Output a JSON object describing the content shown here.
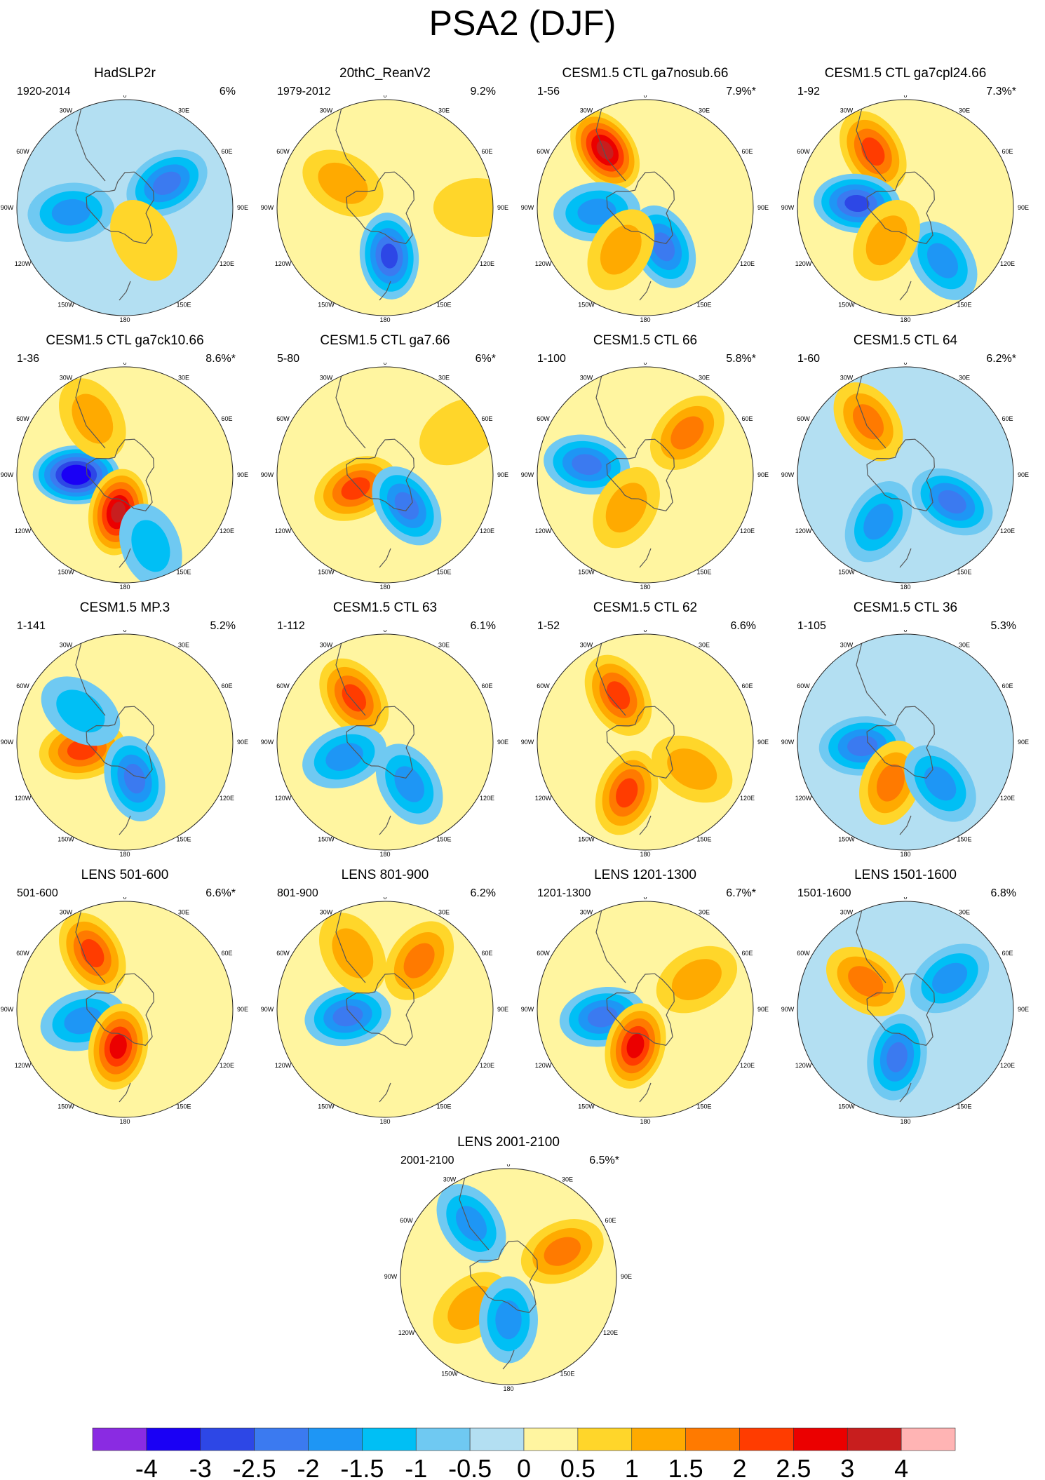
{
  "title": "PSA2 (DJF)",
  "longitude_labels": [
    "0",
    "30E",
    "60E",
    "90E",
    "120E",
    "150E",
    "180",
    "150W",
    "120W",
    "90W",
    "60W",
    "30W"
  ],
  "colorbar": {
    "labels": [
      "-4",
      "-3",
      "-2.5",
      "-2",
      "-1.5",
      "-1",
      "-0.5",
      "0",
      "0.5",
      "1",
      "1.5",
      "2",
      "2.5",
      "3",
      "4"
    ],
    "colors": [
      "#8a2be2",
      "#1a00f5",
      "#2d47e6",
      "#3b7af0",
      "#1e96f5",
      "#00bff5",
      "#6fc9f2",
      "#b3dff2",
      "#fff5a0",
      "#ffd62a",
      "#ffaa00",
      "#ff7a00",
      "#ff3c00",
      "#eb0000",
      "#c81e1e",
      "#ffb4b4"
    ]
  },
  "chart_data": {
    "type": "polar-contour-maps",
    "projection": "south-polar stereographic",
    "panels": [
      {
        "title": "HadSLP2r",
        "years": "1920-2014",
        "pct": "6%",
        "blobs": [
          {
            "lon": 60,
            "r": 0.45,
            "v": -2.0
          },
          {
            "lon": -95,
            "r": 0.5,
            "v": -1.5
          },
          {
            "lon": 150,
            "r": 0.35,
            "v": 0.5
          }
        ]
      },
      {
        "title": "20thC_ReanV2",
        "years": "1979-2012",
        "pct": "9.2%",
        "blobs": [
          {
            "lon": 175,
            "r": 0.45,
            "v": -2.5
          },
          {
            "lon": -60,
            "r": 0.45,
            "v": 1.0
          },
          {
            "lon": 90,
            "r": 0.85,
            "v": 0.5
          }
        ]
      },
      {
        "title": "CESM1.5 CTL ga7nosub.66",
        "years": "1-56",
        "pct": "7.9%*",
        "blobs": [
          {
            "lon": -35,
            "r": 0.65,
            "v": 3.0
          },
          {
            "lon": -95,
            "r": 0.45,
            "v": -1.5
          },
          {
            "lon": 155,
            "r": 0.4,
            "v": -2.0
          },
          {
            "lon": -150,
            "r": 0.45,
            "v": 1.0
          }
        ]
      },
      {
        "title": "CESM1.5 CTL ga7cpl24.66",
        "years": "1-92",
        "pct": "7.3%*",
        "blobs": [
          {
            "lon": -30,
            "r": 0.6,
            "v": 2.0
          },
          {
            "lon": -85,
            "r": 0.45,
            "v": -2.5
          },
          {
            "lon": 145,
            "r": 0.6,
            "v": -1.5
          },
          {
            "lon": -150,
            "r": 0.35,
            "v": 1.0
          }
        ]
      },
      {
        "title": "CESM1.5 CTL ga7ck10.66",
        "years": "1-36",
        "pct": "8.6%*",
        "blobs": [
          {
            "lon": -90,
            "r": 0.45,
            "v": -3.5
          },
          {
            "lon": -170,
            "r": 0.35,
            "v": 3.0
          },
          {
            "lon": -30,
            "r": 0.6,
            "v": 1.0
          },
          {
            "lon": 160,
            "r": 0.7,
            "v": -1.0
          }
        ]
      },
      {
        "title": "CESM1.5 CTL ga7.66",
        "years": "5-80",
        "pct": "6%*",
        "blobs": [
          {
            "lon": -115,
            "r": 0.3,
            "v": 2.0
          },
          {
            "lon": 145,
            "r": 0.35,
            "v": -2.0
          },
          {
            "lon": 60,
            "r": 0.8,
            "v": 0.5
          }
        ]
      },
      {
        "title": "CESM1.5 CTL 66",
        "years": "1-100",
        "pct": "5.8%*",
        "blobs": [
          {
            "lon": -80,
            "r": 0.55,
            "v": -2.0
          },
          {
            "lon": 45,
            "r": 0.55,
            "v": 1.5
          },
          {
            "lon": -150,
            "r": 0.35,
            "v": 1.0
          }
        ]
      },
      {
        "title": "CESM1.5 CTL 64",
        "years": "1-60",
        "pct": "6.2%*",
        "blobs": [
          {
            "lon": -35,
            "r": 0.6,
            "v": 1.5
          },
          {
            "lon": 120,
            "r": 0.5,
            "v": -2.0
          },
          {
            "lon": -150,
            "r": 0.5,
            "v": -1.5
          }
        ]
      },
      {
        "title": "CESM1.5 MP.3",
        "years": "1-141",
        "pct": "5.2%",
        "blobs": [
          {
            "lon": -100,
            "r": 0.4,
            "v": 2.0
          },
          {
            "lon": 165,
            "r": 0.35,
            "v": -2.0
          },
          {
            "lon": -55,
            "r": 0.5,
            "v": -1.0
          }
        ]
      },
      {
        "title": "CESM1.5 CTL 63",
        "years": "1-112",
        "pct": "6.1%",
        "blobs": [
          {
            "lon": -35,
            "r": 0.5,
            "v": 2.0
          },
          {
            "lon": 150,
            "r": 0.45,
            "v": -1.5
          },
          {
            "lon": -110,
            "r": 0.4,
            "v": -1.5
          }
        ]
      },
      {
        "title": "CESM1.5 CTL 62",
        "years": "1-52",
        "pct": "6.6%",
        "blobs": [
          {
            "lon": -30,
            "r": 0.5,
            "v": 2.0
          },
          {
            "lon": -160,
            "r": 0.5,
            "v": 2.0
          },
          {
            "lon": 120,
            "r": 0.5,
            "v": 1.0
          }
        ]
      },
      {
        "title": "CESM1.5 CTL 36",
        "years": "1-105",
        "pct": "5.3%",
        "blobs": [
          {
            "lon": -95,
            "r": 0.4,
            "v": -2.0
          },
          {
            "lon": -160,
            "r": 0.4,
            "v": 1.5
          },
          {
            "lon": 140,
            "r": 0.5,
            "v": -1.5
          }
        ]
      },
      {
        "title": "LENS 501-600",
        "years": "501-600",
        "pct": "6.6%*",
        "blobs": [
          {
            "lon": -30,
            "r": 0.6,
            "v": 2.0
          },
          {
            "lon": -105,
            "r": 0.4,
            "v": -1.5
          },
          {
            "lon": -170,
            "r": 0.35,
            "v": 2.5
          }
        ]
      },
      {
        "title": "LENS 801-900",
        "years": "801-900",
        "pct": "6.2%",
        "blobs": [
          {
            "lon": -100,
            "r": 0.35,
            "v": -2.0
          },
          {
            "lon": 35,
            "r": 0.55,
            "v": 1.5
          },
          {
            "lon": -30,
            "r": 0.6,
            "v": 1.0
          }
        ]
      },
      {
        "title": "LENS 1201-1300",
        "years": "1201-1300",
        "pct": "6.7%*",
        "blobs": [
          {
            "lon": -100,
            "r": 0.4,
            "v": -2.0
          },
          {
            "lon": -165,
            "r": 0.35,
            "v": 2.5
          },
          {
            "lon": 60,
            "r": 0.55,
            "v": 1.0
          }
        ]
      },
      {
        "title": "LENS 1501-1600",
        "years": "1501-1600",
        "pct": "6.8%",
        "blobs": [
          {
            "lon": 55,
            "r": 0.5,
            "v": -1.5
          },
          {
            "lon": -170,
            "r": 0.45,
            "v": -2.0
          },
          {
            "lon": -55,
            "r": 0.45,
            "v": 1.5
          }
        ]
      },
      {
        "title": "LENS 2001-2100",
        "years": "2001-2100",
        "pct": "6.5%*",
        "blobs": [
          {
            "lon": -35,
            "r": 0.6,
            "v": -1.5
          },
          {
            "lon": 65,
            "r": 0.55,
            "v": 1.5
          },
          {
            "lon": -130,
            "r": 0.45,
            "v": 1.0
          },
          {
            "lon": 180,
            "r": 0.4,
            "v": -1.5
          }
        ]
      }
    ]
  }
}
